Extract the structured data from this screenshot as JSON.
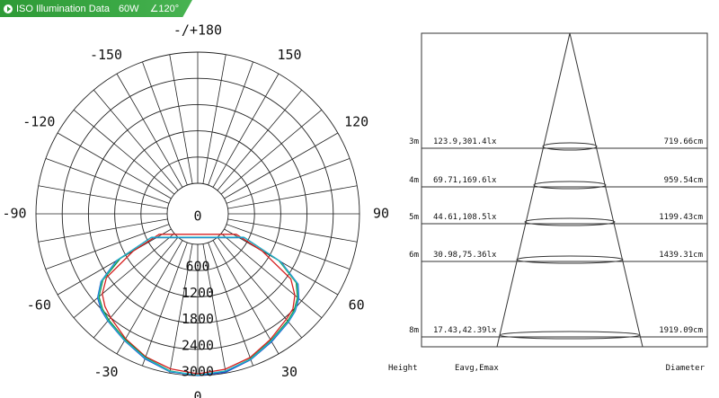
{
  "header": {
    "title": "ISO Illumination Data",
    "power": "60W",
    "angle": "∠120°"
  },
  "chart_data": [
    {
      "type": "polar",
      "angle_labels": [
        "-/+180",
        "150",
        "120",
        "90",
        "60",
        "30",
        "0",
        "-30",
        "-60",
        "-90",
        "-120",
        "-150"
      ],
      "angle_values": [
        180,
        150,
        120,
        90,
        60,
        30,
        0,
        -30,
        -60,
        -90,
        -120,
        -150
      ],
      "radial_labels": [
        "0",
        "600",
        "1200",
        "1800",
        "2400",
        "3000"
      ],
      "radial_values": [
        0,
        600,
        1200,
        1800,
        2400,
        3000
      ],
      "rmax": 3000,
      "grid": true,
      "series": [
        {
          "color": "#d62020",
          "points": [
            [
              0,
              2960
            ],
            [
              10,
              2910
            ],
            [
              20,
              2800
            ],
            [
              30,
              2620
            ],
            [
              40,
              2450
            ],
            [
              45,
              2380
            ],
            [
              50,
              2200
            ],
            [
              55,
              1900
            ],
            [
              60,
              1000
            ],
            [
              62,
              300
            ],
            [
              -62,
              300
            ],
            [
              -60,
              1000
            ],
            [
              -55,
              1850
            ],
            [
              -50,
              2150
            ],
            [
              -45,
              2300
            ],
            [
              -40,
              2400
            ],
            [
              -30,
              2600
            ],
            [
              -20,
              2780
            ],
            [
              -10,
              2900
            ]
          ]
        },
        {
          "color": "#1f8a2a",
          "points": [
            [
              0,
              3000
            ],
            [
              10,
              2960
            ],
            [
              20,
              2830
            ],
            [
              30,
              2650
            ],
            [
              40,
              2500
            ],
            [
              45,
              2420
            ],
            [
              50,
              2280
            ],
            [
              55,
              2050
            ],
            [
              60,
              1450
            ],
            [
              63,
              500
            ],
            [
              -63,
              500
            ],
            [
              -60,
              1350
            ],
            [
              -55,
              1950
            ],
            [
              -50,
              2250
            ],
            [
              -45,
              2380
            ],
            [
              -40,
              2470
            ],
            [
              -30,
              2620
            ],
            [
              -20,
              2800
            ],
            [
              -10,
              2950
            ]
          ]
        },
        {
          "color": "#2050d0",
          "points": [
            [
              0,
              3000
            ],
            [
              10,
              2980
            ],
            [
              20,
              2850
            ],
            [
              30,
              2680
            ],
            [
              40,
              2530
            ],
            [
              45,
              2450
            ],
            [
              50,
              2320
            ],
            [
              55,
              2100
            ],
            [
              60,
              1500
            ],
            [
              63,
              500
            ],
            [
              -63,
              500
            ],
            [
              -60,
              1450
            ],
            [
              -55,
              2000
            ],
            [
              -50,
              2290
            ],
            [
              -45,
              2420
            ],
            [
              -40,
              2500
            ],
            [
              -30,
              2650
            ],
            [
              -20,
              2830
            ],
            [
              -10,
              2970
            ]
          ]
        },
        {
          "color": "#22b8c8",
          "points": [
            [
              0,
              2990
            ],
            [
              10,
              2950
            ],
            [
              20,
              2840
            ],
            [
              30,
              2660
            ],
            [
              40,
              2520
            ],
            [
              45,
              2440
            ],
            [
              50,
              2300
            ],
            [
              55,
              2080
            ],
            [
              60,
              1480
            ],
            [
              63,
              480
            ],
            [
              -63,
              480
            ],
            [
              -60,
              1420
            ],
            [
              -55,
              1980
            ],
            [
              -50,
              2270
            ],
            [
              -45,
              2400
            ],
            [
              -40,
              2490
            ],
            [
              -30,
              2640
            ],
            [
              -20,
              2810
            ],
            [
              -10,
              2960
            ]
          ]
        }
      ]
    },
    {
      "type": "table",
      "columns": [
        "Height",
        "Eavg,Emax",
        "Diameter"
      ],
      "rows": [
        {
          "height": "3m",
          "eavg_emax": "123.9,301.4lx",
          "diameter": "719.66cm"
        },
        {
          "height": "4m",
          "eavg_emax": "69.71,169.6lx",
          "diameter": "959.54cm"
        },
        {
          "height": "5m",
          "eavg_emax": "44.61,108.5lx",
          "diameter": "1199.43cm"
        },
        {
          "height": "6m",
          "eavg_emax": "30.98,75.36lx",
          "diameter": "1439.31cm"
        },
        {
          "height": "8m",
          "eavg_emax": "17.43,42.39lx",
          "diameter": "1919.09cm"
        }
      ]
    }
  ]
}
